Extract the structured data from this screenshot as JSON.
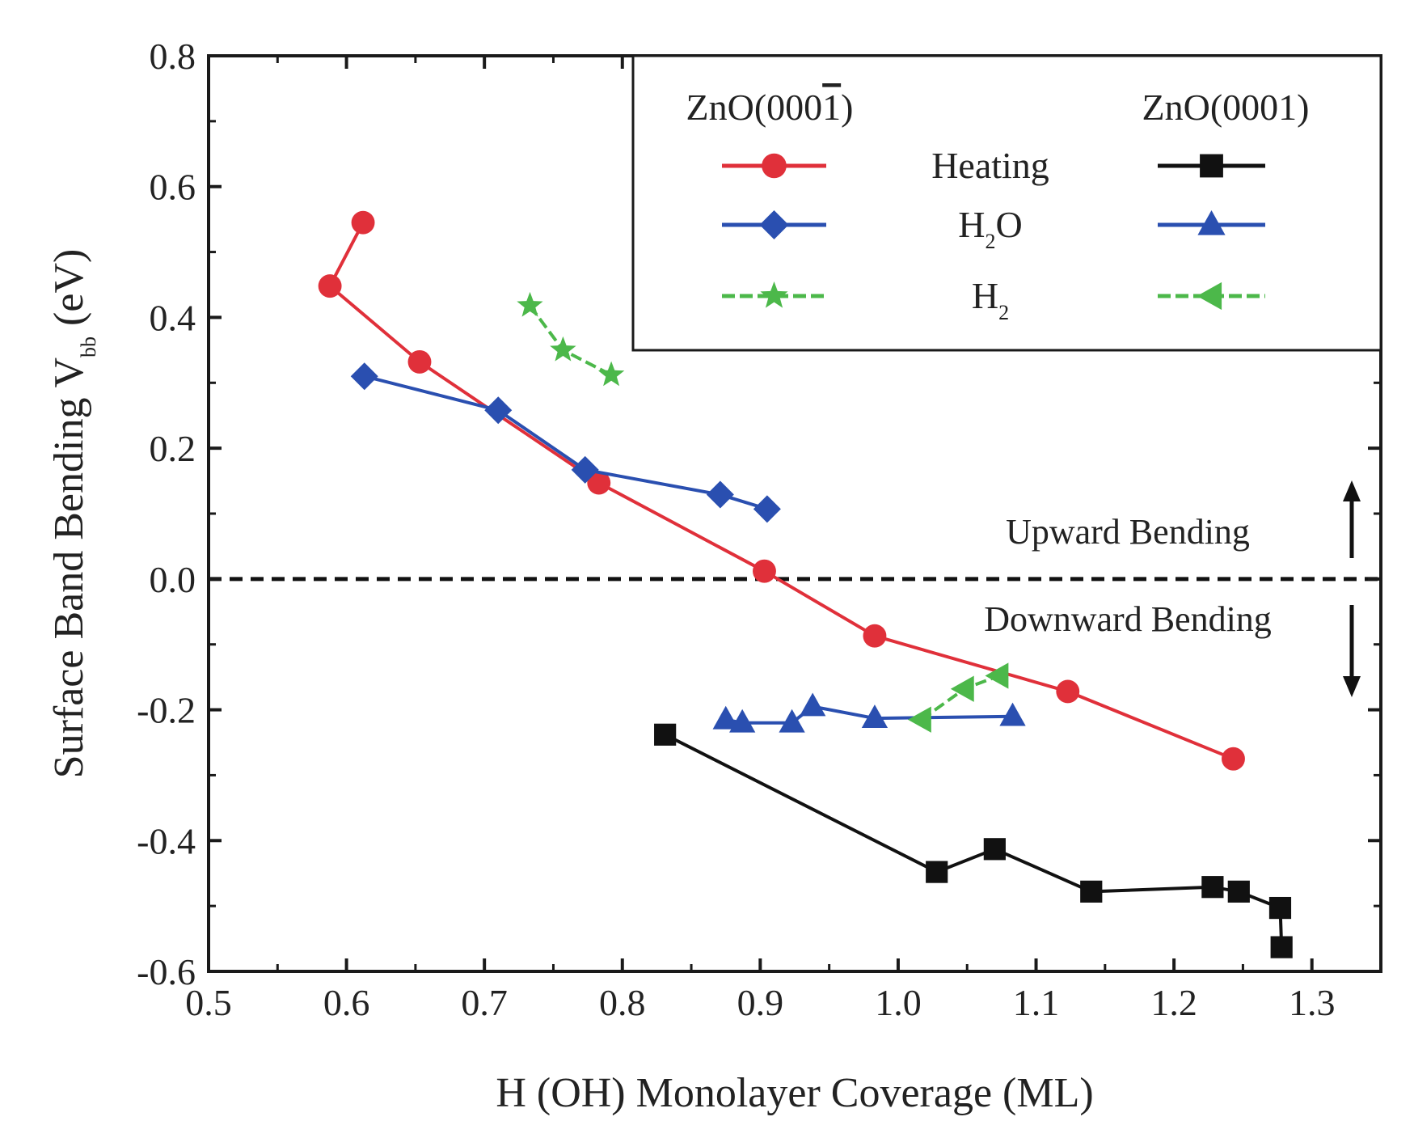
{
  "chart_data": {
    "type": "line",
    "xlabel": "H (OH) Monolayer Coverage (ML)",
    "ylabel_main": "Surface Band Bending V",
    "ylabel_sub": "bb",
    "ylabel_unit": " (eV)",
    "xlim": [
      0.5,
      1.35
    ],
    "ylim": [
      -0.6,
      0.8
    ],
    "xticks": [
      0.5,
      0.6,
      0.7,
      0.8,
      0.9,
      1.0,
      1.1,
      1.2,
      1.3
    ],
    "xtick_labels": [
      "0.5",
      "0.6",
      "0.7",
      "0.8",
      "0.9",
      "1.0",
      "1.1",
      "1.2",
      "1.3"
    ],
    "yticks": [
      -0.6,
      -0.4,
      -0.2,
      0.0,
      0.2,
      0.4,
      0.6,
      0.8
    ],
    "ytick_labels": [
      "-0.6",
      "-0.4",
      "-0.2",
      "0.0",
      "0.2",
      "0.4",
      "0.6",
      "0.8"
    ],
    "reference_line_y": 0.0,
    "legend": {
      "header_left": "ZnO(000",
      "header_left_bar": "1",
      "header_left_close": ")",
      "header_right": "ZnO(0001)",
      "rows": [
        {
          "label": "Heating",
          "label_sub": "",
          "label_tail": "",
          "left_series": 0,
          "right_series": 3
        },
        {
          "label": "H",
          "label_sub": "2",
          "label_tail": "O",
          "left_series": 1,
          "right_series": 4
        },
        {
          "label": "H",
          "label_sub": "2",
          "label_tail": "",
          "left_series": 2,
          "right_series": 5
        }
      ]
    },
    "annotations": {
      "upward": "Upward Bending",
      "downward": "Downward Bending"
    },
    "series": [
      {
        "name": "ZnO(000-1) Heating",
        "color": "#e0303a",
        "marker": "circle",
        "dashed": false,
        "x": [
          0.612,
          0.588,
          0.653,
          0.783,
          0.903,
          0.983,
          1.123,
          1.243
        ],
        "y": [
          0.545,
          0.448,
          0.332,
          0.147,
          0.012,
          -0.087,
          -0.172,
          -0.275
        ]
      },
      {
        "name": "ZnO(000-1) H2O",
        "color": "#2a4fb0",
        "marker": "diamond",
        "dashed": false,
        "x": [
          0.613,
          0.71,
          0.773,
          0.871,
          0.905
        ],
        "y": [
          0.31,
          0.258,
          0.167,
          0.129,
          0.107
        ]
      },
      {
        "name": "ZnO(000-1) H2",
        "color": "#4cb84a",
        "marker": "star",
        "dashed": true,
        "x": [
          0.733,
          0.757,
          0.792
        ],
        "y": [
          0.418,
          0.35,
          0.312
        ]
      },
      {
        "name": "ZnO(0001) Heating",
        "color": "#111111",
        "marker": "square",
        "dashed": false,
        "x": [
          0.831,
          1.028,
          1.07,
          1.14,
          1.228,
          1.247,
          1.277,
          1.278
        ],
        "y": [
          -0.238,
          -0.448,
          -0.413,
          -0.478,
          -0.471,
          -0.478,
          -0.503,
          -0.563
        ]
      },
      {
        "name": "ZnO(0001) H2O",
        "color": "#2a4fb0",
        "marker": "triangle-up",
        "dashed": false,
        "x": [
          0.875,
          0.887,
          0.923,
          0.938,
          0.983,
          1.083
        ],
        "y": [
          -0.215,
          -0.22,
          -0.22,
          -0.195,
          -0.213,
          -0.21
        ]
      },
      {
        "name": "ZnO(0001) H2",
        "color": "#4cb84a",
        "marker": "triangle-left",
        "dashed": true,
        "x": [
          1.017,
          1.048,
          1.073
        ],
        "y": [
          -0.215,
          -0.168,
          -0.148
        ]
      }
    ]
  }
}
